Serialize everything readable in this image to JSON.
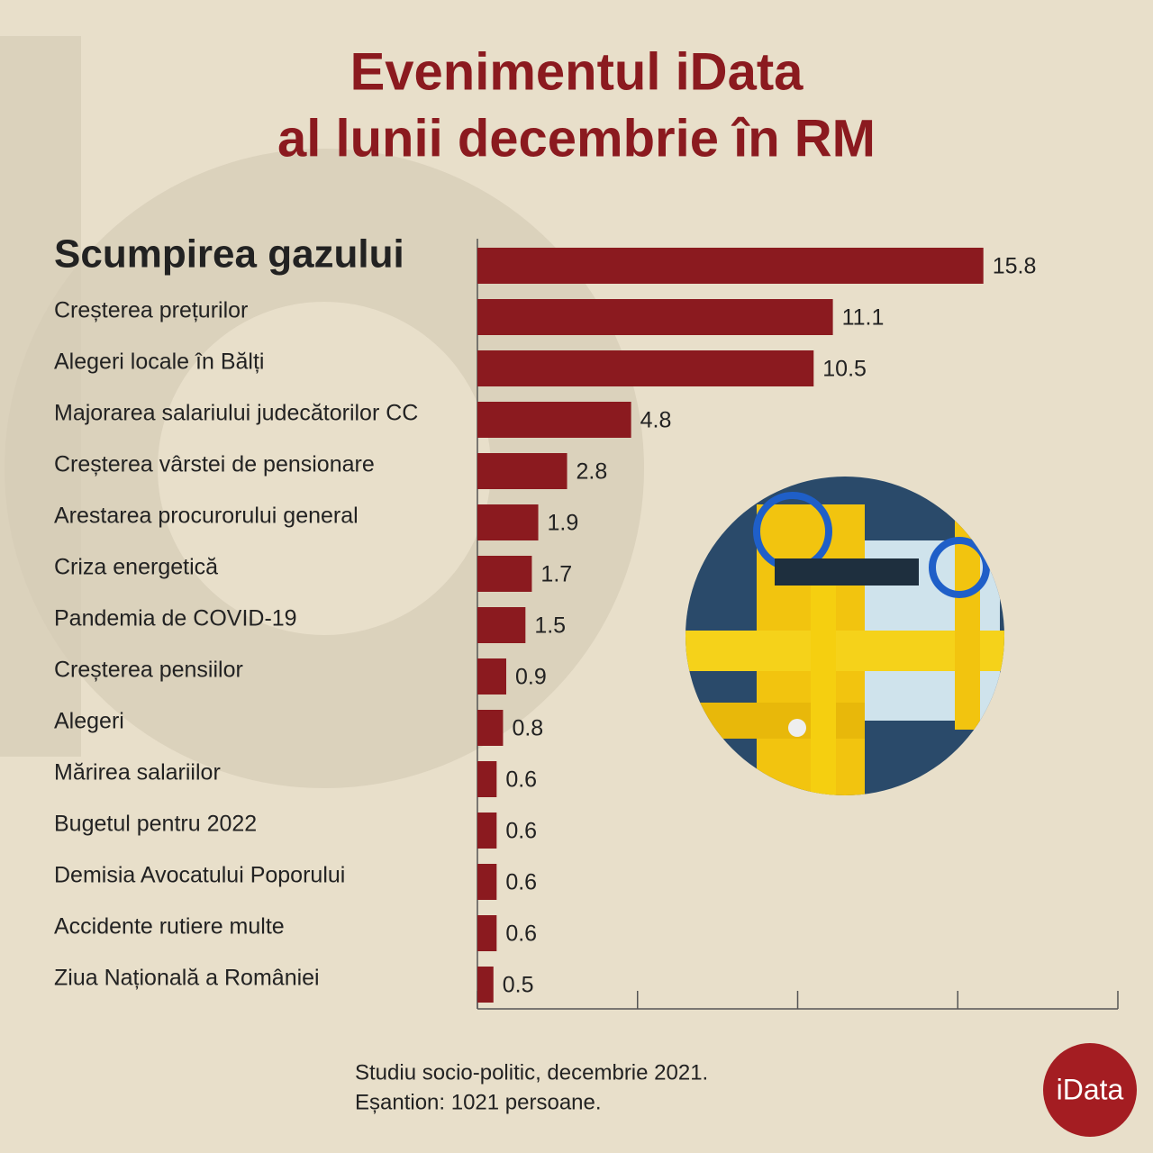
{
  "chart_data": {
    "type": "bar",
    "orientation": "horizontal",
    "title": [
      "Evenimentul iData",
      "al lunii decembrie în RM"
    ],
    "categories": [
      "Scumpirea gazului",
      "Creșterea prețurilor",
      "Alegeri locale în Bălți",
      "Majorarea salariului judecătorilor CC",
      "Creșterea vârstei de pensionare",
      "Arestarea procurorului general",
      "Criza energetică",
      "Pandemia de COVID-19",
      "Creșterea pensiilor",
      "Alegeri",
      "Mărirea salariilor",
      "Bugetul pentru 2022",
      "Demisia Avocatului Poporului",
      "Accidente rutiere multe",
      "Ziua Națională a României"
    ],
    "values": [
      15.8,
      11.1,
      10.5,
      4.8,
      2.8,
      1.9,
      1.7,
      1.5,
      0.9,
      0.8,
      0.6,
      0.6,
      0.6,
      0.6,
      0.5
    ],
    "color": "#8b1a1f",
    "xlim": [
      0,
      20
    ],
    "xticks": [
      0,
      5,
      10,
      15,
      20
    ],
    "notes": [
      "Studiu socio-politic, decembrie 2021.",
      "Eșantion: 1021 persoane."
    ],
    "logo": "iData"
  }
}
